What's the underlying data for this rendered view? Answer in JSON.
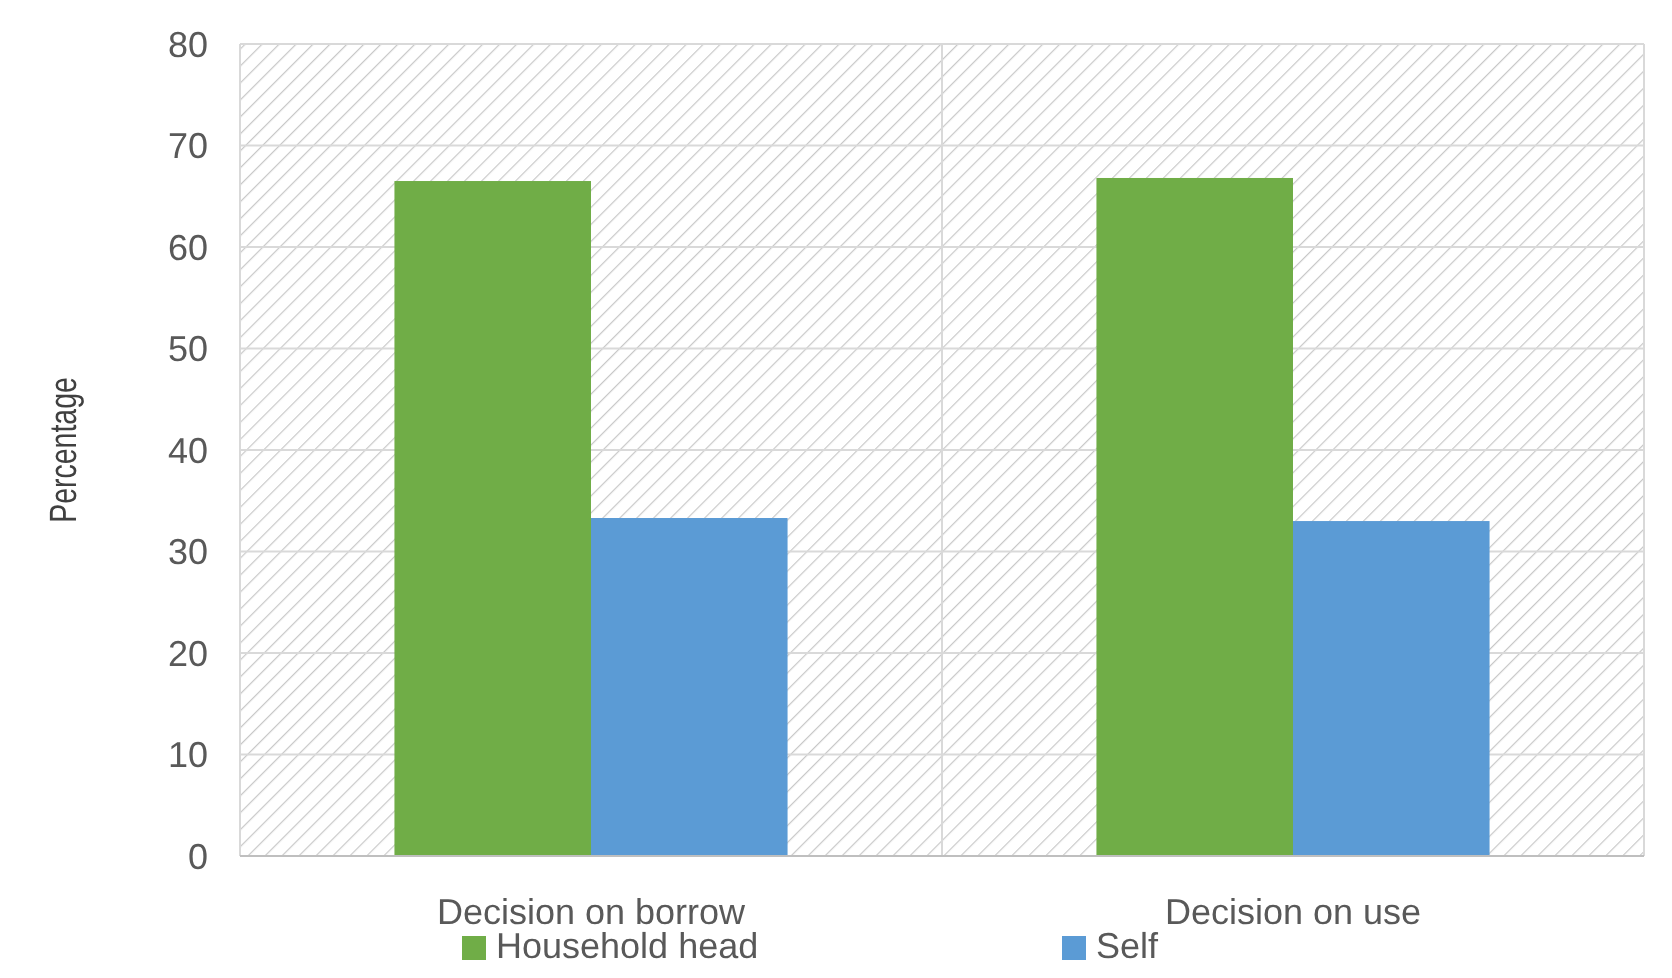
{
  "chart_data": {
    "type": "bar",
    "ylabel": "Percentage",
    "categories": [
      "Decision on borrow",
      "Decision on use"
    ],
    "series": [
      {
        "name": "Household head",
        "color": "#70ad47",
        "values": [
          66.5,
          66.8
        ]
      },
      {
        "name": "Self",
        "color": "#5b9bd5",
        "values": [
          33.3,
          33.0
        ]
      }
    ],
    "ylim": [
      0,
      80
    ],
    "yticks": [
      0,
      10,
      20,
      30,
      40,
      50,
      60,
      70,
      80
    ],
    "grid": "y",
    "legend": "bottom"
  }
}
